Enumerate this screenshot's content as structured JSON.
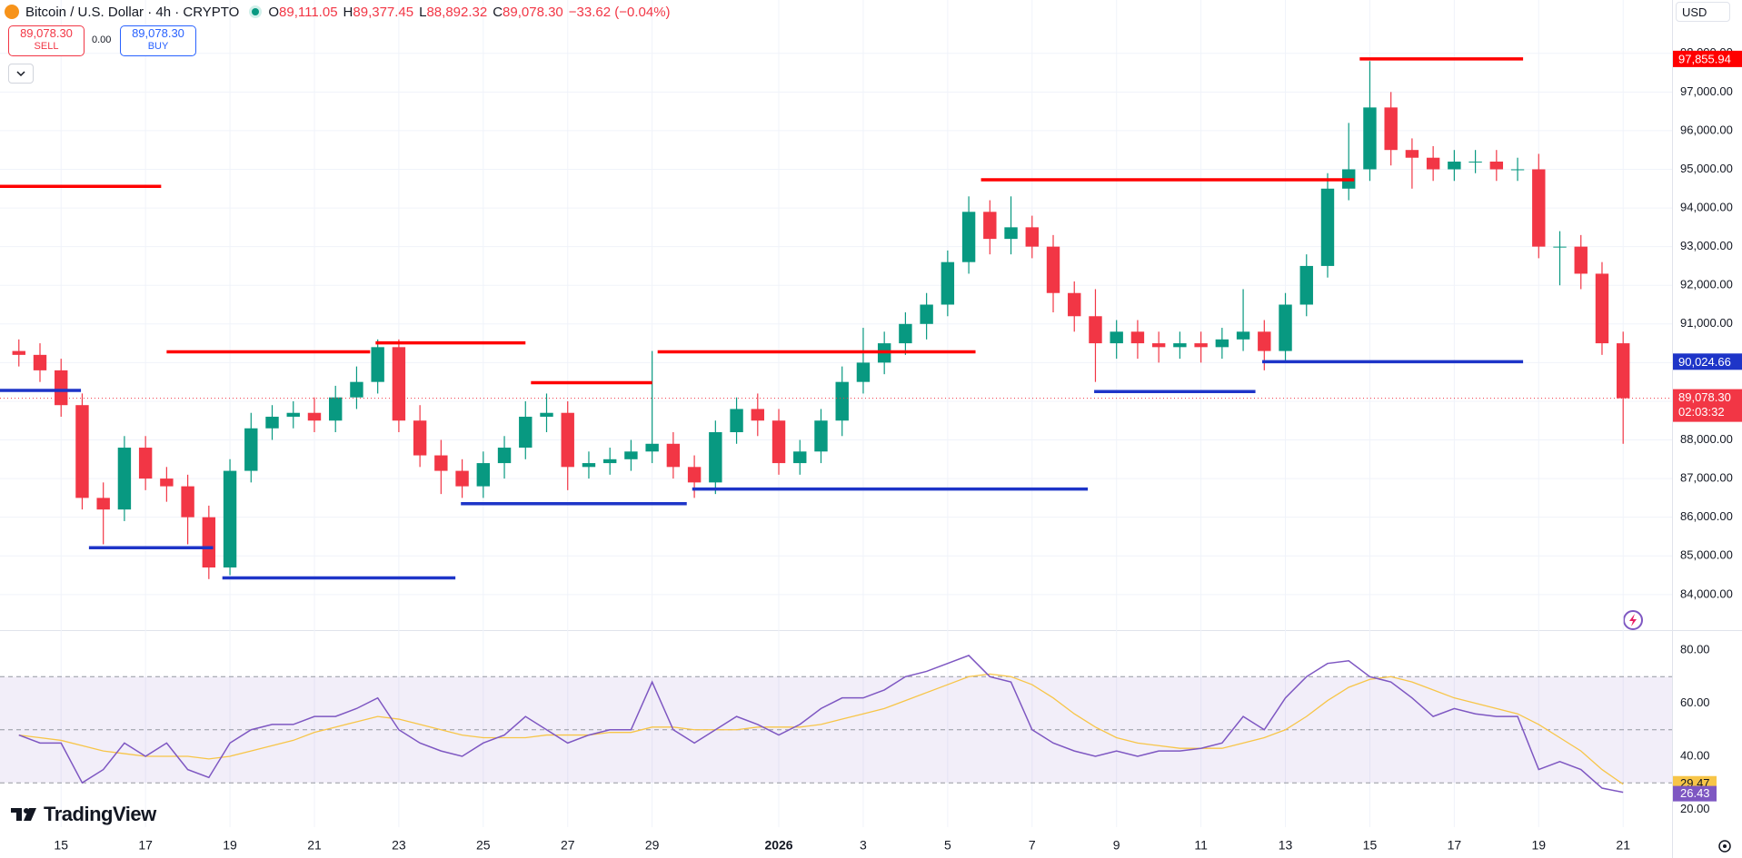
{
  "header": {
    "symbol": "Bitcoin / U.S. Dollar · 4h · CRYPTO",
    "ohlc": [
      {
        "key": "O",
        "value": "89,111.05"
      },
      {
        "key": "H",
        "value": "89,377.45"
      },
      {
        "key": "L",
        "value": "88,892.32"
      },
      {
        "key": "C",
        "value": "89,078.30"
      }
    ],
    "change": "−33.62 (−0.04%)",
    "sell_price": "89,078.30",
    "sell": "SELL",
    "spread": "0.00",
    "buy_price": "89,078.30",
    "buy": "BUY",
    "currency": "USD",
    "logo": "TradingView"
  },
  "chart_data": {
    "type": "candlestick",
    "up_color": "#089981",
    "down_color": "#f23645",
    "grid": true,
    "xlim": [
      13.553,
      53.158
    ],
    "xticks": [
      15,
      17,
      19,
      21,
      23,
      25,
      27,
      29,
      {
        "value": 32,
        "label": "2026"
      },
      {
        "value": 34,
        "label": "3"
      },
      {
        "value": 36,
        "label": "5"
      },
      {
        "value": 38,
        "label": "7"
      },
      {
        "value": 40,
        "label": "9"
      },
      {
        "value": 42,
        "label": "11"
      },
      {
        "value": 44,
        "label": "13"
      },
      {
        "value": 46,
        "label": "15"
      },
      {
        "value": 48,
        "label": "17"
      },
      {
        "value": 50,
        "label": "19"
      },
      {
        "value": 52,
        "label": "21"
      }
    ],
    "ylim": [
      83080,
      99380
    ],
    "yticks": [
      {
        "value": 84000,
        "label": "84,000.00"
      },
      {
        "value": 85000,
        "label": "85,000.00"
      },
      {
        "value": 86000,
        "label": "86,000.00"
      },
      {
        "value": 87000,
        "label": "87,000.00"
      },
      {
        "value": 88000,
        "label": "88,000.00"
      },
      {
        "value": 89000,
        "label": "89,000.00"
      },
      {
        "value": 90000,
        "label": "90,000.00"
      },
      {
        "value": 91000,
        "label": "91,000.00"
      },
      {
        "value": 92000,
        "label": "92,000.00"
      },
      {
        "value": 93000,
        "label": "93,000.00"
      },
      {
        "value": 94000,
        "label": "94,000.00"
      },
      {
        "value": 95000,
        "label": "95,000.00"
      },
      {
        "value": 96000,
        "label": "96,000.00"
      },
      {
        "value": 97000,
        "label": "97,000.00"
      },
      {
        "value": 98000,
        "label": "98,000.00"
      }
    ],
    "candles": {
      "x": [
        14,
        14.5,
        15,
        15.5,
        16,
        16.5,
        17,
        17.5,
        18,
        18.5,
        19,
        19.5,
        20,
        20.5,
        21,
        21.5,
        22,
        22.5,
        23,
        23.5,
        24,
        24.5,
        25,
        25.5,
        26,
        26.5,
        27,
        27.5,
        28,
        28.5,
        29,
        29.5,
        30,
        30.5,
        31,
        31.5,
        32,
        32.5,
        33,
        33.5,
        34,
        34.5,
        35,
        35.5,
        36,
        36.5,
        37,
        37.5,
        38,
        38.5,
        39,
        39.5,
        40,
        40.5,
        41,
        41.5,
        42,
        42.5,
        43,
        43.5,
        44,
        44.5,
        45,
        45.5,
        46,
        46.5,
        47,
        47.5,
        48,
        48.5,
        49,
        49.5,
        50,
        50.5,
        51,
        51.5,
        52
      ],
      "open": [
        90300,
        90200,
        89800,
        88900,
        86500,
        86200,
        87800,
        87000,
        86800,
        86000,
        84700,
        87200,
        88300,
        88600,
        88700,
        88500,
        89100,
        89500,
        90400,
        88500,
        87600,
        87200,
        86800,
        87400,
        87800,
        88600,
        88700,
        87300,
        87400,
        87500,
        87700,
        87900,
        87300,
        86900,
        88200,
        88800,
        88500,
        87400,
        87700,
        88500,
        89500,
        90000,
        90500,
        91000,
        91500,
        92600,
        93900,
        93200,
        93500,
        93000,
        91800,
        91200,
        90500,
        90800,
        90500,
        90400,
        90500,
        90400,
        90600,
        90800,
        90300,
        91500,
        92500,
        94500,
        95000,
        96600,
        95500,
        95300,
        95000,
        95200,
        95200,
        95000,
        95000,
        93000,
        93000,
        92300,
        90500
      ],
      "high": [
        90600,
        90500,
        90100,
        89200,
        86900,
        88100,
        88100,
        87300,
        87100,
        86300,
        87500,
        88700,
        88900,
        89000,
        89100,
        89400,
        89900,
        90600,
        90600,
        88900,
        88000,
        87500,
        87700,
        88100,
        89000,
        89200,
        89000,
        87700,
        87800,
        88000,
        90300,
        88200,
        87600,
        88500,
        89100,
        89200,
        88800,
        88000,
        88800,
        89900,
        90900,
        90800,
        91300,
        91800,
        92900,
        94300,
        94200,
        94300,
        93800,
        93300,
        92100,
        91900,
        91100,
        91100,
        90800,
        90800,
        90800,
        90900,
        91900,
        91100,
        91800,
        92800,
        94900,
        96200,
        97800,
        97000,
        95800,
        95600,
        95500,
        95500,
        95500,
        95300,
        95400,
        93400,
        93300,
        92600,
        90800
      ],
      "low": [
        89900,
        89500,
        88600,
        86200,
        85300,
        85900,
        86700,
        86400,
        85300,
        84400,
        84500,
        86900,
        88000,
        88300,
        88200,
        88200,
        88800,
        89200,
        88200,
        87300,
        86600,
        86500,
        86500,
        87000,
        87500,
        88200,
        86700,
        87000,
        87100,
        87200,
        87400,
        87000,
        86500,
        86600,
        87900,
        88100,
        87100,
        87100,
        87400,
        88100,
        89200,
        89700,
        90200,
        90600,
        91200,
        92300,
        92800,
        92800,
        92700,
        91300,
        90800,
        89500,
        90100,
        90100,
        90000,
        90100,
        90000,
        90100,
        90300,
        89800,
        90000,
        91200,
        92200,
        94200,
        94700,
        95100,
        94500,
        94700,
        94700,
        94900,
        94700,
        94700,
        92700,
        92000,
        91900,
        90200,
        87900
      ],
      "close": [
        90200,
        89800,
        88900,
        86500,
        86200,
        87800,
        87000,
        86800,
        86000,
        84700,
        87200,
        88300,
        88600,
        88700,
        88500,
        89100,
        89500,
        90400,
        88500,
        87600,
        87200,
        86800,
        87400,
        87800,
        88600,
        88700,
        87300,
        87400,
        87500,
        87700,
        87900,
        87300,
        86900,
        88200,
        88800,
        88500,
        87400,
        87700,
        88500,
        89500,
        90000,
        90500,
        91000,
        91500,
        92600,
        93900,
        93200,
        93500,
        93000,
        91800,
        91200,
        90500,
        90800,
        90500,
        90400,
        90500,
        90400,
        90600,
        90800,
        90300,
        91500,
        92500,
        94500,
        95000,
        96600,
        95500,
        95300,
        95000,
        95200,
        95200,
        95000,
        95000,
        93000,
        93000,
        92300,
        90500,
        89078.3
      ]
    },
    "levels": [
      {
        "value": 94560,
        "from": 13.553,
        "to": 17.37,
        "color": "#ff0000"
      },
      {
        "value": 90280,
        "from": 17.5,
        "to": 22.32,
        "color": "#ff0000"
      },
      {
        "value": 90510,
        "from": 22.45,
        "to": 26.0,
        "color": "#ff0000"
      },
      {
        "value": 89480,
        "from": 26.13,
        "to": 29.0,
        "color": "#ff0000"
      },
      {
        "value": 90280,
        "from": 29.13,
        "to": 36.66,
        "color": "#ff0000"
      },
      {
        "value": 94730,
        "from": 36.79,
        "to": 45.63,
        "color": "#ff0000"
      },
      {
        "value": 97855.94,
        "label": "97,855.94",
        "from": 45.76,
        "to": 49.63,
        "color": "#ff0000"
      },
      {
        "value": 89280,
        "from": 13.553,
        "to": 15.47,
        "color": "#1e35c8"
      },
      {
        "value": 85210,
        "from": 15.66,
        "to": 18.6,
        "color": "#1e35c8"
      },
      {
        "value": 84430,
        "from": 18.82,
        "to": 24.34,
        "color": "#1e35c8"
      },
      {
        "value": 86350,
        "from": 24.47,
        "to": 29.82,
        "color": "#1e35c8"
      },
      {
        "value": 86730,
        "from": 29.95,
        "to": 39.32,
        "color": "#1e35c8"
      },
      {
        "value": 89250,
        "from": 39.47,
        "to": 43.29,
        "color": "#1e35c8"
      },
      {
        "value": 90024.66,
        "label": "90,024.66",
        "from": 43.45,
        "to": 49.63,
        "color": "#1e35c8"
      }
    ],
    "last_price": 89078.3,
    "last_price_label": "89,078.30",
    "countdown": "02:03:32",
    "rsi": {
      "ylim": [
        13.3,
        87.55
      ],
      "yticks": [
        {
          "value": 20,
          "label": "20.00"
        },
        {
          "value": 40,
          "label": "40.00"
        },
        {
          "value": 60,
          "label": "60.00"
        },
        {
          "value": 80,
          "label": "80.00"
        }
      ],
      "levels": [
        30,
        50,
        70
      ],
      "color": "#7e57c2",
      "ma_color": "#f7c548",
      "values": [
        48,
        45,
        45,
        30,
        35,
        45,
        40,
        45,
        35,
        32,
        45,
        50,
        52,
        52,
        55,
        55,
        58,
        62,
        50,
        45,
        42,
        40,
        45,
        48,
        55,
        50,
        45,
        48,
        50,
        50,
        68,
        50,
        45,
        50,
        55,
        52,
        48,
        52,
        58,
        62,
        62,
        65,
        70,
        72,
        75,
        78,
        70,
        68,
        50,
        45,
        42,
        40,
        42,
        40,
        42,
        42,
        43,
        45,
        55,
        50,
        62,
        70,
        75,
        76,
        70,
        68,
        62,
        55,
        58,
        56,
        55,
        55,
        35,
        38,
        35,
        28,
        26.43
      ],
      "ma": [
        48,
        47,
        46,
        44,
        42,
        41,
        40,
        40,
        40,
        39,
        40,
        42,
        44,
        46,
        49,
        51,
        53,
        55,
        54,
        52,
        50,
        48,
        47,
        47,
        47,
        48,
        48,
        48,
        49,
        49,
        51,
        51,
        50,
        50,
        50,
        51,
        51,
        51,
        52,
        54,
        56,
        58,
        61,
        64,
        67,
        70,
        71,
        70,
        67,
        62,
        56,
        51,
        47,
        45,
        44,
        43,
        43,
        43,
        45,
        47,
        50,
        55,
        61,
        66,
        69,
        70,
        68,
        65,
        62,
        60,
        58,
        56,
        52,
        47,
        42,
        35,
        29.47
      ],
      "value_label": "26.43",
      "ma_label": "29.47"
    }
  }
}
